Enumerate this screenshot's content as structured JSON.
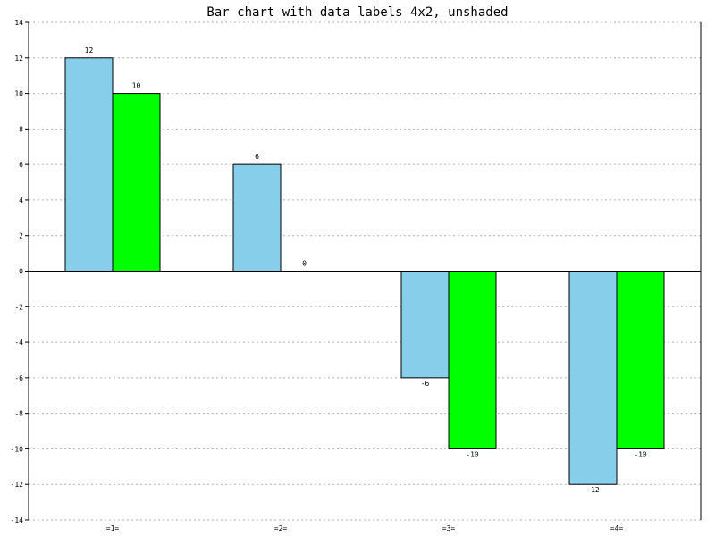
{
  "chart_data": {
    "type": "bar",
    "title": "Bar chart with data labels 4x2, unshaded",
    "categories": [
      "=1=",
      "=2=",
      "=3=",
      "=4="
    ],
    "series": [
      {
        "values": [
          12,
          6,
          -6,
          -12
        ],
        "color": "#87ceeb"
      },
      {
        "values": [
          10,
          0,
          -10,
          -10
        ],
        "color": "#00ff00"
      }
    ],
    "ylim": [
      -14,
      14
    ],
    "yticks": [
      -14,
      -12,
      -10,
      -8,
      -6,
      -4,
      -2,
      0,
      2,
      4,
      6,
      8,
      10,
      12,
      14
    ],
    "grid": true,
    "data_labels": true
  }
}
